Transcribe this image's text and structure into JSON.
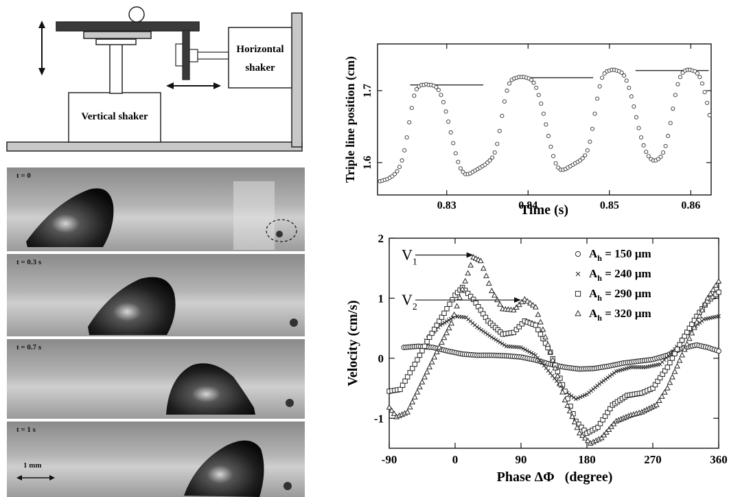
{
  "apparatus": {
    "vertical_shaker_label": "Vertical shaker",
    "horizontal_shaker_label_line1": "Horizontal",
    "horizontal_shaker_label_line2": "shaker"
  },
  "photos": [
    {
      "label": "t = 0"
    },
    {
      "label": "t = 0.3 s"
    },
    {
      "label": "t = 0.7 s"
    },
    {
      "label": "t = 1 s"
    }
  ],
  "scale_bar_label": "1 mm",
  "chart_data": [
    {
      "type": "scatter",
      "xlabel": "Time (s)",
      "ylabel": "Triple line position (cm)",
      "xlim": [
        0.8215,
        0.8625
      ],
      "ylim": [
        1.555,
        1.765
      ],
      "x_ticks": [
        "0.83",
        "0.84",
        "0.85",
        "0.86"
      ],
      "x_tick_values": [
        0.83,
        0.84,
        0.85,
        0.86
      ],
      "y_ticks": [
        "1.6",
        "1.7"
      ],
      "y_tick_values": [
        1.6,
        1.7
      ],
      "reference_lines": [
        {
          "x": [
            0.8255,
            0.8345
          ],
          "y": 1.708
        },
        {
          "x": [
            0.8385,
            0.848
          ],
          "y": 1.718
        },
        {
          "x": [
            0.8532,
            0.8622
          ],
          "y": 1.728
        }
      ],
      "points": [
        [
          0.8218,
          1.574
        ],
        [
          0.8221,
          1.575
        ],
        [
          0.8224,
          1.576
        ],
        [
          0.8227,
          1.577
        ],
        [
          0.823,
          1.579
        ],
        [
          0.8233,
          1.581
        ],
        [
          0.8236,
          1.584
        ],
        [
          0.8239,
          1.588
        ],
        [
          0.8242,
          1.594
        ],
        [
          0.8245,
          1.603
        ],
        [
          0.8248,
          1.617
        ],
        [
          0.8251,
          1.635
        ],
        [
          0.8254,
          1.656
        ],
        [
          0.8257,
          1.676
        ],
        [
          0.826,
          1.693
        ],
        [
          0.8263,
          1.702
        ],
        [
          0.8266,
          1.706
        ],
        [
          0.8269,
          1.708
        ],
        [
          0.8272,
          1.708
        ],
        [
          0.8275,
          1.709
        ],
        [
          0.8278,
          1.708
        ],
        [
          0.8281,
          1.708
        ],
        [
          0.8284,
          1.707
        ],
        [
          0.8287,
          1.705
        ],
        [
          0.829,
          1.701
        ],
        [
          0.8293,
          1.694
        ],
        [
          0.8296,
          1.684
        ],
        [
          0.8299,
          1.671
        ],
        [
          0.8302,
          1.657
        ],
        [
          0.8305,
          1.642
        ],
        [
          0.8308,
          1.627
        ],
        [
          0.8311,
          1.613
        ],
        [
          0.8314,
          1.601
        ],
        [
          0.8317,
          1.592
        ],
        [
          0.832,
          1.587
        ],
        [
          0.8323,
          1.584
        ],
        [
          0.8326,
          1.584
        ],
        [
          0.8329,
          1.585
        ],
        [
          0.8332,
          1.587
        ],
        [
          0.8335,
          1.589
        ],
        [
          0.8338,
          1.591
        ],
        [
          0.8341,
          1.593
        ],
        [
          0.8344,
          1.595
        ],
        [
          0.8347,
          1.597
        ],
        [
          0.835,
          1.6
        ],
        [
          0.8353,
          1.603
        ],
        [
          0.8356,
          1.607
        ],
        [
          0.8359,
          1.614
        ],
        [
          0.8362,
          1.626
        ],
        [
          0.8365,
          1.644
        ],
        [
          0.8368,
          1.665
        ],
        [
          0.8371,
          1.685
        ],
        [
          0.8374,
          1.7
        ],
        [
          0.8377,
          1.71
        ],
        [
          0.838,
          1.715
        ],
        [
          0.8383,
          1.717
        ],
        [
          0.8386,
          1.718
        ],
        [
          0.8389,
          1.719
        ],
        [
          0.8392,
          1.719
        ],
        [
          0.8395,
          1.719
        ],
        [
          0.8398,
          1.718
        ],
        [
          0.8401,
          1.717
        ],
        [
          0.8404,
          1.715
        ],
        [
          0.8407,
          1.711
        ],
        [
          0.841,
          1.704
        ],
        [
          0.8413,
          1.694
        ],
        [
          0.8416,
          1.682
        ],
        [
          0.8419,
          1.668
        ],
        [
          0.8422,
          1.653
        ],
        [
          0.8425,
          1.637
        ],
        [
          0.8428,
          1.622
        ],
        [
          0.8431,
          1.609
        ],
        [
          0.8434,
          1.599
        ],
        [
          0.8437,
          1.593
        ],
        [
          0.844,
          1.59
        ],
        [
          0.8443,
          1.59
        ],
        [
          0.8446,
          1.591
        ],
        [
          0.8449,
          1.593
        ],
        [
          0.8452,
          1.595
        ],
        [
          0.8455,
          1.597
        ],
        [
          0.8458,
          1.599
        ],
        [
          0.8461,
          1.601
        ],
        [
          0.8464,
          1.603
        ],
        [
          0.8467,
          1.606
        ],
        [
          0.847,
          1.61
        ],
        [
          0.8473,
          1.617
        ],
        [
          0.8476,
          1.629
        ],
        [
          0.8479,
          1.647
        ],
        [
          0.8482,
          1.668
        ],
        [
          0.8485,
          1.689
        ],
        [
          0.8488,
          1.706
        ],
        [
          0.8491,
          1.718
        ],
        [
          0.8494,
          1.724
        ],
        [
          0.8497,
          1.727
        ],
        [
          0.85,
          1.728
        ],
        [
          0.8503,
          1.729
        ],
        [
          0.8506,
          1.729
        ],
        [
          0.8509,
          1.728
        ],
        [
          0.8512,
          1.727
        ],
        [
          0.8515,
          1.725
        ],
        [
          0.8518,
          1.721
        ],
        [
          0.8521,
          1.714
        ],
        [
          0.8524,
          1.704
        ],
        [
          0.8527,
          1.692
        ],
        [
          0.853,
          1.678
        ],
        [
          0.8533,
          1.663
        ],
        [
          0.8536,
          1.648
        ],
        [
          0.8539,
          1.635
        ],
        [
          0.8542,
          1.624
        ],
        [
          0.8545,
          1.615
        ],
        [
          0.8548,
          1.609
        ],
        [
          0.8551,
          1.605
        ],
        [
          0.8554,
          1.603
        ],
        [
          0.8557,
          1.603
        ],
        [
          0.856,
          1.605
        ],
        [
          0.8563,
          1.608
        ],
        [
          0.8566,
          1.614
        ],
        [
          0.8569,
          1.623
        ],
        [
          0.8572,
          1.637
        ],
        [
          0.8575,
          1.655
        ],
        [
          0.8578,
          1.675
        ],
        [
          0.8581,
          1.694
        ],
        [
          0.8584,
          1.709
        ],
        [
          0.8587,
          1.719
        ],
        [
          0.859,
          1.725
        ],
        [
          0.8593,
          1.728
        ],
        [
          0.8596,
          1.729
        ],
        [
          0.8599,
          1.729
        ],
        [
          0.8602,
          1.728
        ],
        [
          0.8605,
          1.727
        ],
        [
          0.8608,
          1.724
        ],
        [
          0.8611,
          1.719
        ],
        [
          0.8614,
          1.71
        ],
        [
          0.8617,
          1.698
        ],
        [
          0.862,
          1.683
        ],
        [
          0.8623,
          1.666
        ]
      ]
    },
    {
      "type": "scatter",
      "xlabel": "Phase ΔΦ   (degree)",
      "ylabel": "Velocity (cm/s)",
      "xlim": [
        -90,
        360
      ],
      "ylim": [
        -1.5,
        2
      ],
      "x_ticks": [
        "-90",
        "0",
        "90",
        "180",
        "270",
        "360"
      ],
      "x_tick_values": [
        -90,
        0,
        90,
        180,
        270,
        360
      ],
      "y_ticks": [
        "-1",
        "0",
        "1",
        "2"
      ],
      "y_tick_values": [
        -1,
        0,
        1,
        2
      ],
      "annotations": [
        {
          "text": "V",
          "subscript": "1",
          "arrow_from": [
            -60,
            1.72
          ],
          "arrow_to": [
            25,
            1.72
          ]
        },
        {
          "text": "V",
          "subscript": "2",
          "arrow_from": [
            -60,
            0.97
          ],
          "arrow_to": [
            90,
            0.97
          ]
        }
      ],
      "series": [
        {
          "name": "A",
          "name_sub": "h",
          "name_tail": " = 150 μm",
          "marker": "circle",
          "points": [
            [
              -70,
              0.18
            ],
            [
              -50,
              0.2
            ],
            [
              -30,
              0.18
            ],
            [
              -10,
              0.12
            ],
            [
              10,
              0.07
            ],
            [
              30,
              0.05
            ],
            [
              50,
              0.05
            ],
            [
              70,
              0.04
            ],
            [
              90,
              0.02
            ],
            [
              110,
              -0.03
            ],
            [
              130,
              -0.1
            ],
            [
              150,
              -0.15
            ],
            [
              170,
              -0.18
            ],
            [
              190,
              -0.17
            ],
            [
              210,
              -0.13
            ],
            [
              230,
              -0.08
            ],
            [
              250,
              -0.05
            ],
            [
              270,
              -0.02
            ],
            [
              290,
              0.05
            ],
            [
              310,
              0.17
            ],
            [
              330,
              0.22
            ],
            [
              345,
              0.18
            ],
            [
              360,
              0.12
            ]
          ]
        },
        {
          "name": "A",
          "name_sub": "h",
          "name_tail": " = 240 μm",
          "marker": "x",
          "points": [
            [
              -40,
              0.3
            ],
            [
              -20,
              0.55
            ],
            [
              0,
              0.7
            ],
            [
              15,
              0.68
            ],
            [
              30,
              0.52
            ],
            [
              50,
              0.35
            ],
            [
              70,
              0.2
            ],
            [
              90,
              0.18
            ],
            [
              110,
              0.05
            ],
            [
              130,
              -0.25
            ],
            [
              150,
              -0.55
            ],
            [
              165,
              -0.68
            ],
            [
              180,
              -0.6
            ],
            [
              200,
              -0.4
            ],
            [
              220,
              -0.22
            ],
            [
              240,
              -0.15
            ],
            [
              260,
              -0.15
            ],
            [
              280,
              -0.1
            ],
            [
              300,
              0.15
            ],
            [
              320,
              0.45
            ],
            [
              340,
              0.65
            ],
            [
              360,
              0.7
            ]
          ]
        },
        {
          "name": "A",
          "name_sub": "h",
          "name_tail": " = 290 μm",
          "marker": "square",
          "points": [
            [
              -90,
              -0.55
            ],
            [
              -75,
              -0.52
            ],
            [
              -55,
              -0.1
            ],
            [
              -35,
              0.35
            ],
            [
              -15,
              0.75
            ],
            [
              0,
              1.05
            ],
            [
              10,
              1.18
            ],
            [
              25,
              0.98
            ],
            [
              45,
              0.62
            ],
            [
              65,
              0.4
            ],
            [
              80,
              0.43
            ],
            [
              95,
              0.62
            ],
            [
              110,
              0.55
            ],
            [
              130,
              0.1
            ],
            [
              150,
              -0.55
            ],
            [
              165,
              -1.05
            ],
            [
              180,
              -1.25
            ],
            [
              195,
              -1.15
            ],
            [
              215,
              -0.78
            ],
            [
              235,
              -0.62
            ],
            [
              255,
              -0.58
            ],
            [
              270,
              -0.5
            ],
            [
              290,
              -0.15
            ],
            [
              310,
              0.3
            ],
            [
              330,
              0.7
            ],
            [
              345,
              0.95
            ],
            [
              360,
              1.1
            ]
          ]
        },
        {
          "name": "A",
          "name_sub": "h",
          "name_tail": " = 320 μm",
          "marker": "triangle",
          "points": [
            [
              -90,
              -0.82
            ],
            [
              -80,
              -0.98
            ],
            [
              -65,
              -0.9
            ],
            [
              -45,
              -0.4
            ],
            [
              -25,
              0.1
            ],
            [
              -5,
              0.58
            ],
            [
              10,
              1.15
            ],
            [
              25,
              1.68
            ],
            [
              35,
              1.62
            ],
            [
              50,
              1.12
            ],
            [
              65,
              0.82
            ],
            [
              80,
              0.8
            ],
            [
              95,
              0.98
            ],
            [
              110,
              0.85
            ],
            [
              130,
              0.1
            ],
            [
              150,
              -0.7
            ],
            [
              170,
              -1.25
            ],
            [
              185,
              -1.42
            ],
            [
              200,
              -1.33
            ],
            [
              220,
              -1.05
            ],
            [
              240,
              -0.95
            ],
            [
              255,
              -0.9
            ],
            [
              275,
              -0.78
            ],
            [
              290,
              -0.5
            ],
            [
              310,
              0.05
            ],
            [
              330,
              0.6
            ],
            [
              345,
              1.0
            ],
            [
              360,
              1.28
            ]
          ]
        }
      ]
    }
  ]
}
